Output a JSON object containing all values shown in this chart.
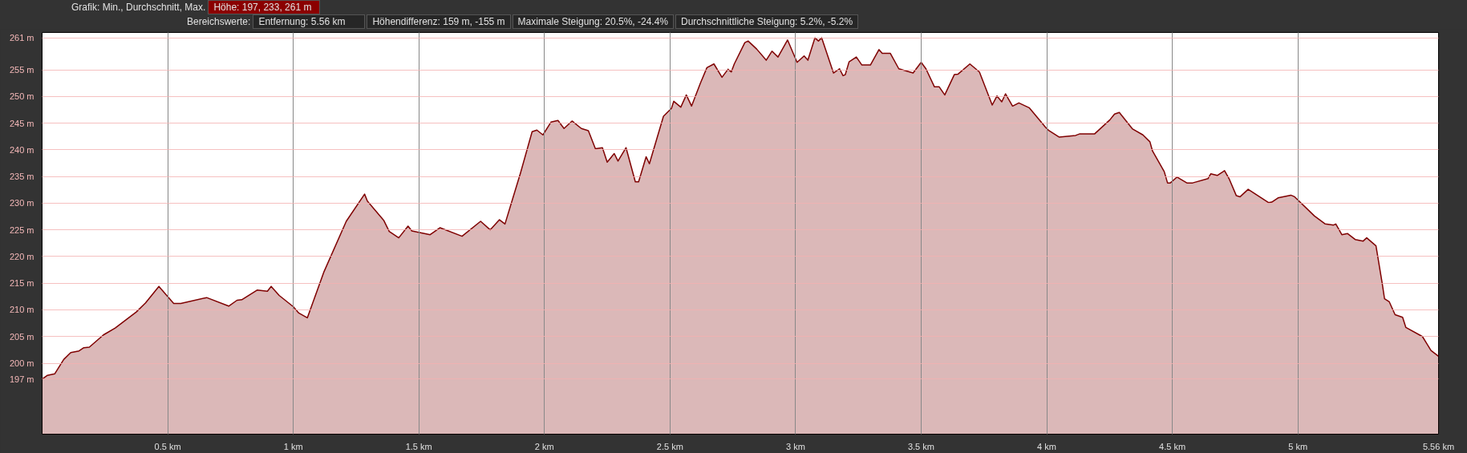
{
  "chart_data": {
    "type": "area",
    "annotations": [
      "Grafik: Min., Durchschnitt, Max.",
      "Höhe: 197, 233, 261 m",
      "Bereichswerte:",
      "Entfernung: 5.56 km",
      "Höhendifferenz: 159 m, -155 m",
      "Maximale Steigung: 20.5%, -24.4%",
      "Durchschnittliche Steigung: 5.2%, -5.2%"
    ],
    "xlim": [
      0,
      5.56
    ],
    "ylim": [
      186.7,
      262
    ],
    "xticks": [
      {
        "value": 0.5,
        "label": "0.5 km"
      },
      {
        "value": 1,
        "label": "1 km"
      },
      {
        "value": 1.5,
        "label": "1.5 km"
      },
      {
        "value": 2,
        "label": "2 km"
      },
      {
        "value": 2.5,
        "label": "2.5 km"
      },
      {
        "value": 3,
        "label": "3 km"
      },
      {
        "value": 3.5,
        "label": "3.5 km"
      },
      {
        "value": 4,
        "label": "4 km"
      },
      {
        "value": 4.5,
        "label": "4.5 km"
      },
      {
        "value": 5,
        "label": "5 km"
      },
      {
        "value": 5.56,
        "label": "5.56 km"
      }
    ],
    "yticks": [
      {
        "value": 197,
        "label": "197 m"
      },
      {
        "value": 200,
        "label": "200 m"
      },
      {
        "value": 205,
        "label": "205 m"
      },
      {
        "value": 210,
        "label": "210 m"
      },
      {
        "value": 215,
        "label": "215 m"
      },
      {
        "value": 220,
        "label": "220 m"
      },
      {
        "value": 225,
        "label": "225 m"
      },
      {
        "value": 230,
        "label": "230 m"
      },
      {
        "value": 235,
        "label": "235 m"
      },
      {
        "value": 240,
        "label": "240 m"
      },
      {
        "value": 245,
        "label": "245 m"
      },
      {
        "value": 250,
        "label": "250 m"
      },
      {
        "value": 255,
        "label": "255 m"
      },
      {
        "value": 261,
        "label": "261 m"
      }
    ],
    "grid": true,
    "series": [
      {
        "color": "#7f0000",
        "x": [
          0,
          0.02,
          0.05,
          0.086,
          0.114,
          0.147,
          0.166,
          0.188,
          0.244,
          0.291,
          0.375,
          0.412,
          0.465,
          0.524,
          0.552,
          0.655,
          0.743,
          0.776,
          0.795,
          0.856,
          0.897,
          0.912,
          0.944,
          1.0,
          1.022,
          1.056,
          1.121,
          1.211,
          1.284,
          1.295,
          1.36,
          1.382,
          1.42,
          1.457,
          1.472,
          1.545,
          1.584,
          1.672,
          1.746,
          1.784,
          1.821,
          1.843,
          1.905,
          1.951,
          1.97,
          1.994,
          2.026,
          2.054,
          2.078,
          2.11,
          2.147,
          2.175,
          2.203,
          2.231,
          2.25,
          2.278,
          2.293,
          2.325,
          2.362,
          2.375,
          2.405,
          2.418,
          2.474,
          2.506,
          2.515,
          2.543,
          2.565,
          2.586,
          2.621,
          2.647,
          2.675,
          2.707,
          2.731,
          2.744,
          2.756,
          2.798,
          2.811,
          2.845,
          2.883,
          2.906,
          2.93,
          2.968,
          3.006,
          3.034,
          3.049,
          3.077,
          3.091,
          3.104,
          3.151,
          3.175,
          3.189,
          3.198,
          3.213,
          3.242,
          3.264,
          3.298,
          3.332,
          3.345,
          3.377,
          3.411,
          3.468,
          3.5,
          3.519,
          3.553,
          3.572,
          3.594,
          3.632,
          3.647,
          3.694,
          3.732,
          3.783,
          3.802,
          3.821,
          3.836,
          3.864,
          3.889,
          3.93,
          3.996,
          4.009,
          4.049,
          4.115,
          4.132,
          4.191,
          4.251,
          4.27,
          4.289,
          4.342,
          4.383,
          4.411,
          4.421,
          4.468,
          4.481,
          4.492,
          4.519,
          4.558,
          4.581,
          4.642,
          4.653,
          4.679,
          4.708,
          4.726,
          4.755,
          4.77,
          4.802,
          4.883,
          4.896,
          4.921,
          4.972,
          4.987,
          5.066,
          5.109,
          5.142,
          5.151,
          5.175,
          5.198,
          5.228,
          5.26,
          5.274,
          5.311,
          5.336,
          5.345,
          5.364,
          5.387,
          5.417,
          5.43,
          5.496,
          5.53,
          5.56
        ],
        "values": [
          197,
          197.7,
          198.0,
          200.7,
          202.0,
          202.3,
          202.9,
          203.0,
          205.3,
          206.6,
          209.6,
          211.3,
          214.4,
          211.2,
          211.2,
          212.3,
          210.7,
          211.8,
          211.9,
          213.7,
          213.5,
          214.4,
          212.7,
          210.6,
          209.4,
          208.5,
          217.0,
          226.6,
          231.7,
          230.4,
          226.8,
          224.7,
          223.5,
          225.7,
          224.8,
          224.1,
          225.4,
          223.8,
          226.6,
          225.0,
          226.9,
          226.1,
          235.7,
          243.4,
          243.7,
          242.8,
          245.2,
          245.5,
          244.0,
          245.4,
          244.0,
          243.6,
          240.2,
          240.4,
          237.7,
          239.3,
          237.9,
          240.4,
          234.0,
          234.0,
          238.7,
          237.4,
          246.3,
          247.8,
          249.1,
          248.0,
          250.3,
          248.2,
          252.5,
          255.4,
          256.1,
          253.6,
          255.1,
          254.6,
          256.1,
          260.1,
          260.4,
          258.9,
          256.8,
          258.5,
          257.4,
          260.6,
          256.4,
          257.6,
          256.8,
          261,
          260.4,
          261,
          254.4,
          255.2,
          253.9,
          254.1,
          256.5,
          257.4,
          255.9,
          255.9,
          258.8,
          258.1,
          258.1,
          255.2,
          254.4,
          256.4,
          255.2,
          251.8,
          251.8,
          250.3,
          254.1,
          254.2,
          256.1,
          254.6,
          248.4,
          250.1,
          249.0,
          250.5,
          248.2,
          248.8,
          247.9,
          244.2,
          243.6,
          242.4,
          242.7,
          243.0,
          243.0,
          245.6,
          246.7,
          247.0,
          243.9,
          242.8,
          241.5,
          239.8,
          235.9,
          233.8,
          233.8,
          234.9,
          233.8,
          233.8,
          234.6,
          235.5,
          235.2,
          236.1,
          234.6,
          231.4,
          231.2,
          232.6,
          230.1,
          230.2,
          231.0,
          231.5,
          231.2,
          227.6,
          226.1,
          225.9,
          226.1,
          224.1,
          224.3,
          223.2,
          222.9,
          223.5,
          222.0,
          214.9,
          212.1,
          211.5,
          209.1,
          208.6,
          206.7,
          205.0,
          202.4,
          201.3
        ]
      }
    ]
  }
}
